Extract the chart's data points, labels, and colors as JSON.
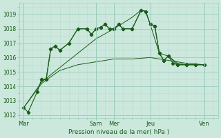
{
  "xlabel": "Pression niveau de la mer( hPa )",
  "bg_color": "#cce8dd",
  "grid_color_major": "#99ccbb",
  "grid_color_minor": "#bbddcc",
  "line_color": "#1a5c1a",
  "ylim": [
    1011.8,
    1019.8
  ],
  "yticks": [
    1012,
    1013,
    1014,
    1015,
    1016,
    1017,
    1018,
    1019
  ],
  "day_labels": [
    "Mar",
    "Sam",
    "Mer",
    "Jeu",
    "Ven"
  ],
  "day_x": [
    0,
    8,
    10,
    14,
    20
  ],
  "xlim": [
    -0.5,
    21.5
  ],
  "vlines": [
    0,
    8,
    10,
    14,
    20
  ],
  "line1_x": [
    0,
    0.5,
    1.5,
    2,
    2.5,
    3,
    3.5,
    4,
    5,
    6,
    7,
    7.5,
    8,
    8.5,
    9,
    9.5,
    10,
    10.5,
    11,
    12,
    13,
    13.5,
    14,
    14.5,
    15,
    15.5,
    16,
    16.5,
    17,
    18,
    19,
    20
  ],
  "line1_y": [
    1012.5,
    1012.2,
    1013.6,
    1014.5,
    1014.5,
    1016.6,
    1016.8,
    1016.5,
    1017.0,
    1018.0,
    1018.0,
    1017.6,
    1018.0,
    1018.1,
    1018.3,
    1018.0,
    1018.0,
    1018.3,
    1018.0,
    1018.0,
    1019.3,
    1019.2,
    1018.3,
    1018.2,
    1016.3,
    1015.8,
    1016.1,
    1015.6,
    1015.5,
    1015.5,
    1015.5,
    1015.5
  ],
  "line2_x": [
    2,
    2.5,
    3,
    3.5,
    4,
    5,
    6,
    7,
    7.5,
    8,
    8.5,
    9,
    9.5,
    10,
    10.5,
    11,
    12,
    13,
    13.5,
    14,
    14.5,
    15,
    15.5,
    16,
    17,
    18,
    19,
    20
  ],
  "line2_y": [
    1014.5,
    1014.5,
    1016.6,
    1016.8,
    1016.5,
    1017.0,
    1018.0,
    1018.0,
    1017.6,
    1018.0,
    1018.1,
    1018.3,
    1018.0,
    1018.0,
    1018.3,
    1018.0,
    1018.0,
    1019.3,
    1019.2,
    1018.3,
    1018.2,
    1016.3,
    1015.8,
    1016.1,
    1015.5,
    1015.5,
    1015.5,
    1015.5
  ],
  "line3_x": [
    0,
    2,
    4,
    6,
    8,
    10,
    12,
    14,
    16,
    18,
    20
  ],
  "line3_y": [
    1012.5,
    1014.2,
    1015.1,
    1015.5,
    1015.7,
    1015.9,
    1015.9,
    1016.0,
    1015.8,
    1015.6,
    1015.5
  ],
  "line4_x": [
    0,
    2,
    4,
    6,
    8,
    10,
    12,
    13,
    13.5,
    14,
    15,
    16,
    17,
    18,
    19,
    20
  ],
  "line4_y": [
    1012.5,
    1014.3,
    1015.3,
    1016.3,
    1017.3,
    1018.0,
    1018.8,
    1019.3,
    1019.2,
    1018.3,
    1016.3,
    1016.1,
    1015.6,
    1015.5,
    1015.5,
    1015.5
  ]
}
